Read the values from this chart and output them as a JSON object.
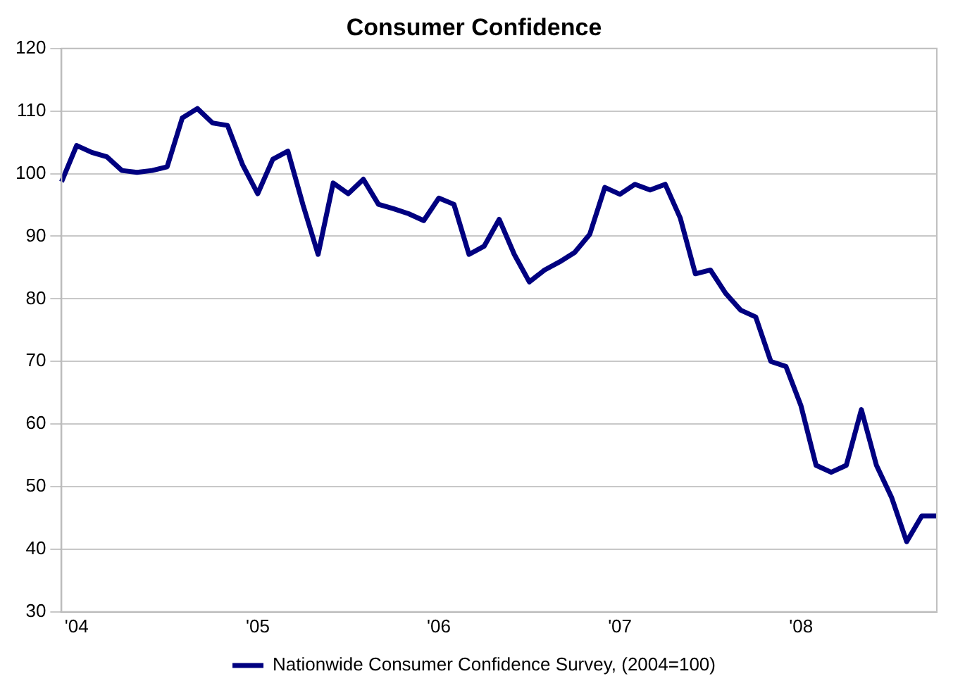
{
  "chart_data": {
    "type": "line",
    "title": "Consumer Confidence",
    "categories": [
      null,
      "'04",
      null,
      null,
      null,
      null,
      null,
      null,
      null,
      null,
      null,
      null,
      null,
      "'05",
      null,
      null,
      null,
      null,
      null,
      null,
      null,
      null,
      null,
      null,
      null,
      "'06",
      null,
      null,
      null,
      null,
      null,
      null,
      null,
      null,
      null,
      null,
      null,
      "'07",
      null,
      null,
      null,
      null,
      null,
      null,
      null,
      null,
      null,
      null,
      null,
      "'08",
      null,
      null,
      null,
      null,
      null,
      null,
      null,
      null,
      null
    ],
    "series": [
      {
        "name": "Nationwide Consumer Confidence Survey, (2004=100)",
        "color": "#000080",
        "values": [
          98.7,
          104.5,
          103.4,
          102.7,
          100.5,
          100.2,
          100.5,
          101.1,
          108.9,
          110.4,
          108.1,
          107.7,
          101.4,
          96.8,
          102.3,
          103.6,
          95.0,
          87.1,
          98.5,
          96.8,
          99.1,
          95.1,
          94.4,
          93.6,
          92.5,
          96.1,
          95.1,
          87.1,
          88.4,
          92.7,
          87.1,
          82.7,
          84.6,
          85.9,
          87.4,
          90.3,
          97.8,
          96.7,
          98.3,
          97.4,
          98.3,
          92.9,
          84.0,
          84.6,
          80.9,
          78.2,
          77.1,
          70.0,
          69.2,
          62.9,
          53.4,
          52.3,
          53.4,
          62.3,
          53.4,
          48.3,
          41.2,
          45.3,
          45.3
        ]
      }
    ],
    "ylim": [
      30,
      120
    ],
    "yticks": [
      30,
      40,
      50,
      60,
      70,
      80,
      90,
      100,
      110,
      120
    ],
    "grid": "y",
    "legend": "bottom",
    "marker": "none",
    "line_style": "solid"
  }
}
